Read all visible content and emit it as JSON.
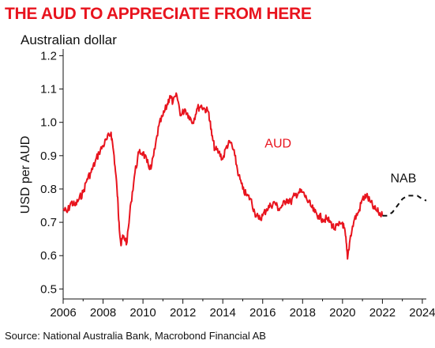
{
  "colors": {
    "title": "#e8141e",
    "aud": "#e8141e",
    "forecast": "#111111",
    "axis": "#111111"
  },
  "chart_data": {
    "type": "line",
    "title": "THE AUD TO APPRECIATE FROM HERE",
    "subtitle": "Australian dollar",
    "ylabel": "USD per AUD",
    "xlabel": "",
    "source": "Source: National Australia Bank, Macrobond Financial AB",
    "xlim": [
      2006,
      2024.2
    ],
    "ylim": [
      0.47,
      1.22
    ],
    "x_ticks": [
      2006,
      2008,
      2010,
      2012,
      2014,
      2016,
      2018,
      2020,
      2022,
      2024
    ],
    "y_ticks": [
      0.5,
      0.6,
      0.7,
      0.8,
      0.9,
      1.0,
      1.1,
      1.2
    ],
    "y_tick_labels": [
      "0.5",
      "0.6",
      "0.7",
      "0.8",
      "0.9",
      "1.0",
      "1.1",
      "1.2"
    ],
    "grid": false,
    "series": [
      {
        "name": "AUD",
        "style": "solid",
        "x": [
          2006.0,
          2006.2,
          2006.4,
          2006.6,
          2006.8,
          2007.0,
          2007.2,
          2007.4,
          2007.6,
          2007.8,
          2008.0,
          2008.2,
          2008.4,
          2008.55,
          2008.7,
          2008.8,
          2008.9,
          2009.0,
          2009.2,
          2009.4,
          2009.6,
          2009.8,
          2010.0,
          2010.2,
          2010.4,
          2010.6,
          2010.8,
          2011.0,
          2011.2,
          2011.35,
          2011.5,
          2011.7,
          2011.9,
          2012.1,
          2012.3,
          2012.5,
          2012.7,
          2012.9,
          2013.1,
          2013.3,
          2013.45,
          2013.6,
          2013.8,
          2014.0,
          2014.2,
          2014.4,
          2014.6,
          2014.8,
          2015.0,
          2015.2,
          2015.4,
          2015.6,
          2015.8,
          2016.0,
          2016.2,
          2016.4,
          2016.6,
          2016.8,
          2017.0,
          2017.2,
          2017.4,
          2017.6,
          2017.8,
          2018.0,
          2018.2,
          2018.4,
          2018.6,
          2018.8,
          2019.0,
          2019.2,
          2019.4,
          2019.6,
          2019.8,
          2020.0,
          2020.15,
          2020.25,
          2020.4,
          2020.6,
          2020.8,
          2021.0,
          2021.2,
          2021.4,
          2021.6,
          2021.8,
          2022.0
        ],
        "values": [
          0.74,
          0.73,
          0.76,
          0.75,
          0.77,
          0.79,
          0.83,
          0.85,
          0.88,
          0.91,
          0.93,
          0.95,
          0.97,
          0.9,
          0.8,
          0.7,
          0.63,
          0.66,
          0.64,
          0.76,
          0.85,
          0.91,
          0.91,
          0.88,
          0.86,
          0.92,
          0.99,
          1.02,
          1.05,
          1.08,
          1.06,
          1.08,
          1.02,
          1.04,
          1.02,
          1.0,
          1.04,
          1.05,
          1.04,
          1.03,
          0.96,
          0.92,
          0.91,
          0.89,
          0.93,
          0.94,
          0.9,
          0.84,
          0.8,
          0.78,
          0.77,
          0.73,
          0.71,
          0.72,
          0.74,
          0.75,
          0.76,
          0.74,
          0.75,
          0.77,
          0.76,
          0.78,
          0.79,
          0.79,
          0.77,
          0.75,
          0.73,
          0.72,
          0.71,
          0.71,
          0.7,
          0.68,
          0.69,
          0.7,
          0.66,
          0.59,
          0.66,
          0.71,
          0.73,
          0.77,
          0.78,
          0.76,
          0.74,
          0.73,
          0.72
        ]
      },
      {
        "name": "NAB",
        "style": "dashed",
        "x": [
          2022.0,
          2022.25,
          2022.5,
          2022.75,
          2023.0,
          2023.25,
          2023.5,
          2023.75,
          2024.0,
          2024.2
        ],
        "values": [
          0.72,
          0.72,
          0.73,
          0.75,
          0.77,
          0.78,
          0.78,
          0.78,
          0.77,
          0.765
        ]
      }
    ]
  }
}
